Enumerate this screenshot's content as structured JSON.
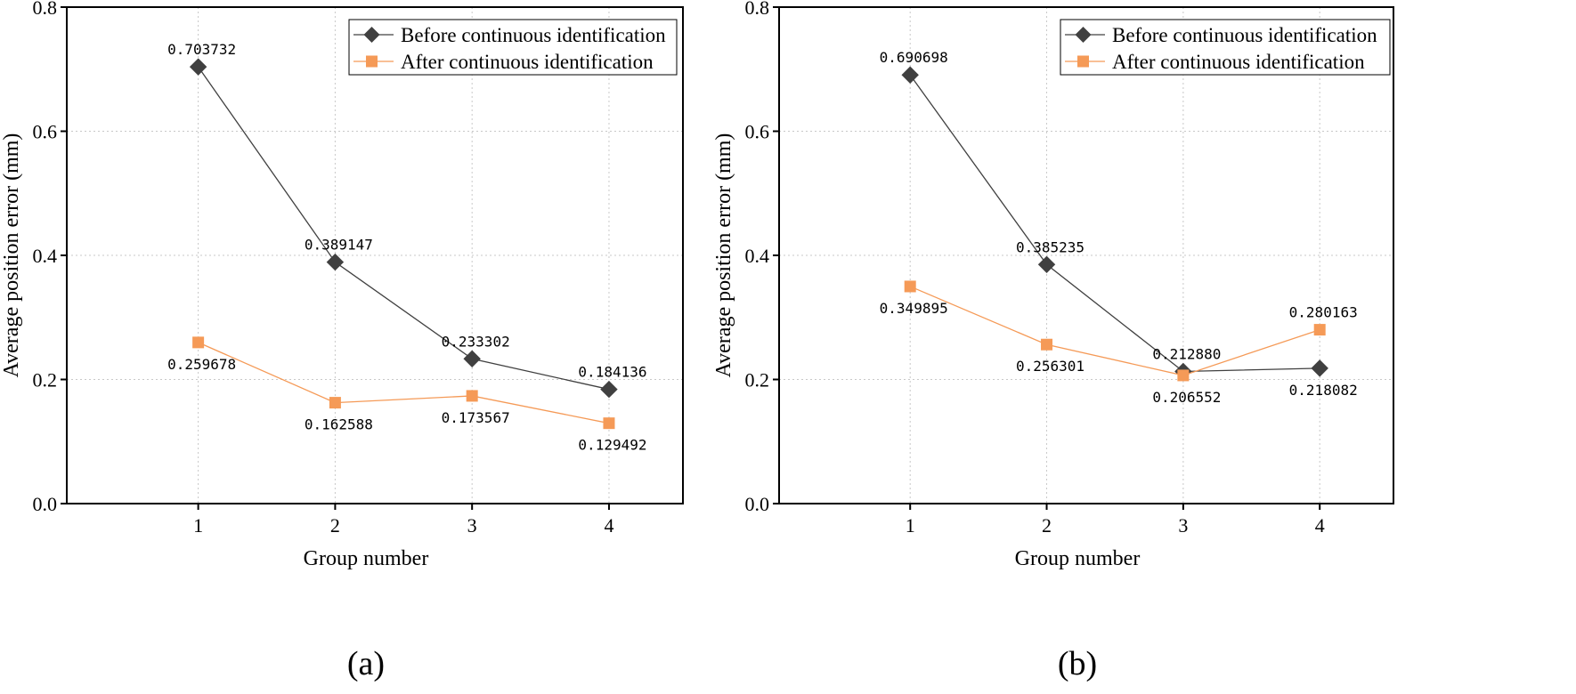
{
  "chart_data": [
    {
      "type": "line",
      "panel_label": "(a)",
      "categories": [
        "1",
        "2",
        "3",
        "4"
      ],
      "xlabel": "Group number",
      "ylabel": "Average position error (mm)",
      "ylim": [
        0,
        0.8
      ],
      "yticks": [
        "0.0",
        "0.2",
        "0.4",
        "0.6",
        "0.8"
      ],
      "grid": true,
      "legend_position": "top-right",
      "series": [
        {
          "name": "Before continuous identification",
          "color": "#404040",
          "marker": "diamond",
          "values": [
            0.703732,
            0.389147,
            0.233302,
            0.184136
          ],
          "labels": [
            "0.703732",
            "0.389147",
            "0.233302",
            "0.184136"
          ],
          "label_placement": [
            "above",
            "above",
            "above",
            "above"
          ]
        },
        {
          "name": "After continuous identification",
          "color": "#f59a57",
          "marker": "square",
          "values": [
            0.259678,
            0.162588,
            0.173567,
            0.129492
          ],
          "labels": [
            "0.259678",
            "0.162588",
            "0.173567",
            "0.129492"
          ],
          "label_placement": [
            "below",
            "below",
            "below",
            "below"
          ]
        }
      ]
    },
    {
      "type": "line",
      "panel_label": "(b)",
      "categories": [
        "1",
        "2",
        "3",
        "4"
      ],
      "xlabel": "Group number",
      "ylabel": "Average position error (mm)",
      "ylim": [
        0,
        0.8
      ],
      "yticks": [
        "0.0",
        "0.2",
        "0.4",
        "0.6",
        "0.8"
      ],
      "grid": true,
      "legend_position": "top-right",
      "series": [
        {
          "name": "Before continuous identification",
          "color": "#404040",
          "marker": "diamond",
          "values": [
            0.690698,
            0.385235,
            0.21288,
            0.218082
          ],
          "labels": [
            "0.690698",
            "0.385235",
            "0.212880",
            "0.218082"
          ],
          "label_placement": [
            "above",
            "above",
            "above",
            "below"
          ]
        },
        {
          "name": "After continuous identification",
          "color": "#f59a57",
          "marker": "square",
          "values": [
            0.349895,
            0.256301,
            0.206552,
            0.280163
          ],
          "labels": [
            "0.349895",
            "0.256301",
            "0.206552",
            "0.280163"
          ],
          "label_placement": [
            "below",
            "below",
            "below",
            "above"
          ]
        }
      ]
    }
  ]
}
